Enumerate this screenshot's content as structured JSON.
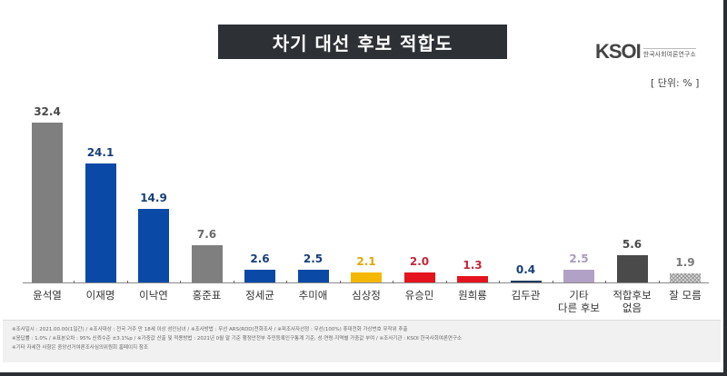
{
  "header": {
    "title": "차기 대선 후보 적합도",
    "logo_mark": "KSOI",
    "logo_subtitle": "한국사회여론연구소",
    "unit": "[ 단위: % ]"
  },
  "chart_data": {
    "type": "bar",
    "title": "차기 대선 후보 적합도",
    "xlabel": "",
    "ylabel": "",
    "unit": "%",
    "ylim": [
      0,
      35
    ],
    "grid": false,
    "legend": "none",
    "categories": [
      "윤석열",
      "이재명",
      "이낙연",
      "홍준표",
      "정세균",
      "추미애",
      "심상정",
      "유승민",
      "원희룡",
      "김두관",
      "기타 다른 후보",
      "적합후보 없음",
      "잘 모름"
    ],
    "values": [
      32.4,
      24.1,
      14.9,
      7.6,
      2.6,
      2.5,
      2.1,
      2.0,
      1.3,
      0.4,
      2.5,
      5.6,
      1.9
    ],
    "colors": [
      "#7f7f7f",
      "#0a4aa6",
      "#0a4aa6",
      "#7f7f7f",
      "#0a4aa6",
      "#0a4aa6",
      "#f5b800",
      "#e3141d",
      "#e3141d",
      "#1f3a60",
      "#b2a1c7",
      "#4a4a4a",
      "#c8c8c8"
    ],
    "label_colors": [
      "#4a4a4a",
      "#173f7a",
      "#173f7a",
      "#6a6a6a",
      "#173f7a",
      "#173f7a",
      "#e0a800",
      "#c0283a",
      "#c0283a",
      "#173f7a",
      "#a99bbd",
      "#4a4a4a",
      "#7a7a7a"
    ],
    "value_labels": [
      "32.4",
      "24.1",
      "14.9",
      "7.6",
      "2.6",
      "2.5",
      "2.1",
      "2.0",
      "1.3",
      "0.4",
      "2.5",
      "5.6",
      "1.9"
    ],
    "category_labels_display": [
      [
        "윤석열"
      ],
      [
        "이재명"
      ],
      [
        "이낙연"
      ],
      [
        "홍준표"
      ],
      [
        "정세균"
      ],
      [
        "추미애"
      ],
      [
        "심상정"
      ],
      [
        "유승민"
      ],
      [
        "원희룡"
      ],
      [
        "김두관"
      ],
      [
        "기타",
        "다른 후보"
      ],
      [
        "적합후보",
        "없음"
      ],
      [
        "잘 모름"
      ]
    ]
  },
  "footer": {
    "lines": [
      "※조사일시 : 2021.00.00(1일간) / ※조사대상 : 전국 거주 만 18세 이상 성인남녀 / ※조사방법 : 무선 ARS(RDD)전화조사 / ※피조사자선정 : 무선(100%) 휴대전화 가상번호 무작위 추출",
      "※응답률 : 1.0% / ※표본오차 : 95% 신뢰수준 ±3.1%p / ※가중값 산출 및 적용방법 : 2021년 0월 말 기준 행정안전부 주민등록인구통계 기준, 성·연령·지역별 가중값 부여 / ※조사기관 : KSOI 한국사회여론연구소",
      "※기타 자세한 사항은 중앙선거여론조사심의위원회 홈페이지 참조"
    ]
  }
}
